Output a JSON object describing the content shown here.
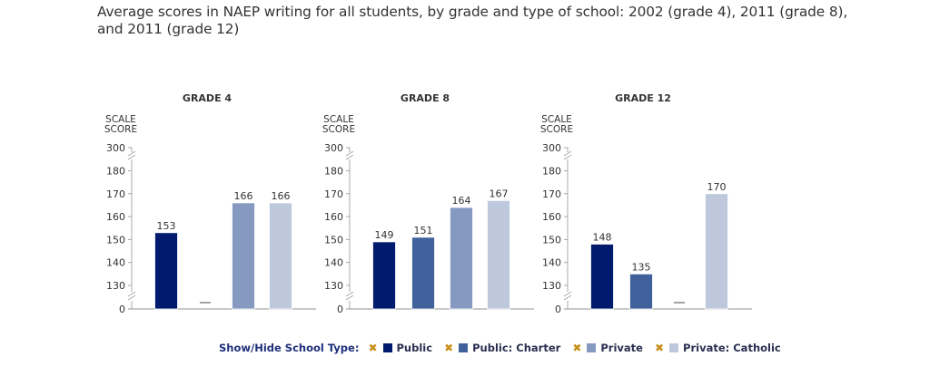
{
  "title": "Average scores in NAEP writing for all students, by grade and type of school: 2002 (grade 4), 2011 (grade 8), and 2011 (grade 12)",
  "legend": {
    "label": "Show/Hide School Type:",
    "toggle_icon": "x-icon",
    "items": [
      {
        "name": "Public",
        "color": "#001a6e"
      },
      {
        "name": "Public: Charter",
        "color": "#40619c"
      },
      {
        "name": "Private",
        "color": "#8699c1"
      },
      {
        "name": "Private: Catholic",
        "color": "#bec8dc"
      }
    ]
  },
  "chart_data": [
    {
      "type": "bar",
      "title": "GRADE 4",
      "ylabel": "SCALE SCORE",
      "categories": [
        "Public",
        "Public: Charter",
        "Private",
        "Private: Catholic"
      ],
      "values": [
        153,
        null,
        166,
        166
      ],
      "data_labels": [
        "153",
        "—",
        "166",
        "166"
      ],
      "yticks": [
        "300",
        "180",
        "170",
        "160",
        "150",
        "140",
        "130",
        "0"
      ],
      "ylim": [
        0,
        300
      ],
      "axis_break": [
        130,
        180
      ],
      "grid": false
    },
    {
      "type": "bar",
      "title": "GRADE 8",
      "ylabel": "SCALE SCORE",
      "categories": [
        "Public",
        "Public: Charter",
        "Private",
        "Private: Catholic"
      ],
      "values": [
        149,
        151,
        164,
        167
      ],
      "data_labels": [
        "149",
        "151",
        "164",
        "167"
      ],
      "yticks": [
        "300",
        "180",
        "170",
        "160",
        "150",
        "140",
        "130",
        "0"
      ],
      "ylim": [
        0,
        300
      ],
      "axis_break": [
        130,
        180
      ],
      "grid": false
    },
    {
      "type": "bar",
      "title": "GRADE 12",
      "ylabel": "SCALE SCORE",
      "categories": [
        "Public",
        "Public: Charter",
        "Private",
        "Private: Catholic"
      ],
      "values": [
        148,
        135,
        null,
        170
      ],
      "data_labels": [
        "148",
        "135",
        "—",
        "170"
      ],
      "yticks": [
        "300",
        "180",
        "170",
        "160",
        "150",
        "140",
        "130",
        "0"
      ],
      "ylim": [
        0,
        300
      ],
      "axis_break": [
        130,
        180
      ],
      "grid": false
    }
  ]
}
